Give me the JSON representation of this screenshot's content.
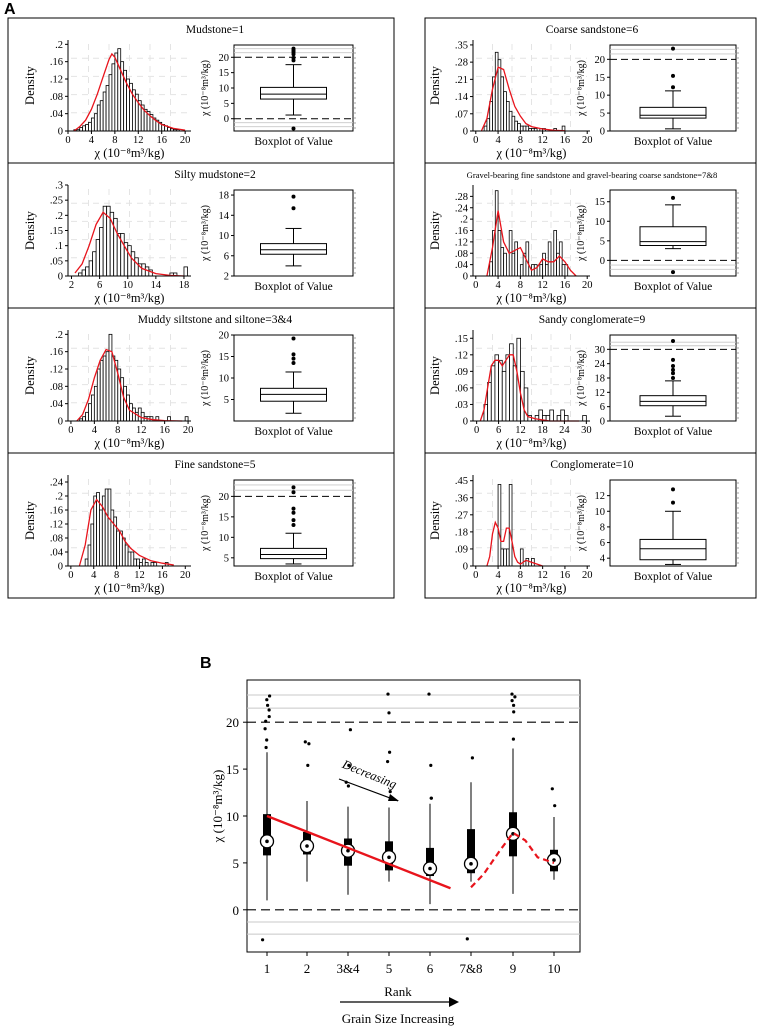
{
  "panel_a_label": "A",
  "panel_b_label": "B",
  "colors": {
    "fit": "#e8141c",
    "grid": "#c8c8c8",
    "axis": "#000000",
    "bar_fill": "#ffffff"
  },
  "common": {
    "density_label": "Density",
    "hist_xlabel": "χ (10⁻⁸m³/kg)",
    "box_ylabel": "χ (10⁻⁸m³/kg)",
    "box_xlabel": "Boxplot of Value"
  },
  "chart_data": [
    {
      "type": "bar",
      "title": "Mudstone=1",
      "xlim": [
        0,
        21
      ],
      "xticks": [
        0,
        4,
        8,
        12,
        16,
        20
      ],
      "ylim": [
        0,
        0.21
      ],
      "yticks": [
        0,
        0.04,
        0.08,
        0.12,
        0.16,
        0.2
      ],
      "bin_start": 1,
      "bin_width": 0.5,
      "values": [
        0.003,
        0.003,
        0.008,
        0.012,
        0.015,
        0.02,
        0.03,
        0.04,
        0.06,
        0.07,
        0.09,
        0.105,
        0.13,
        0.155,
        0.18,
        0.19,
        0.16,
        0.14,
        0.12,
        0.11,
        0.095,
        0.085,
        0.07,
        0.06,
        0.05,
        0.045,
        0.038,
        0.03,
        0.025,
        0.02,
        0.015,
        0.012,
        0.008,
        0.005,
        0.003,
        0.003
      ],
      "fit_x": [
        1,
        2,
        3,
        4,
        5,
        6,
        7,
        7.5,
        8,
        9,
        10,
        11,
        12,
        13,
        14,
        15,
        16,
        18,
        20
      ],
      "fit_y": [
        0,
        0.01,
        0.025,
        0.05,
        0.085,
        0.125,
        0.165,
        0.178,
        0.17,
        0.14,
        0.11,
        0.085,
        0.065,
        0.048,
        0.035,
        0.024,
        0.015,
        0.006,
        0.002
      ],
      "box": {
        "ylim": [
          -4,
          24
        ],
        "yticks": [
          0,
          5,
          10,
          15,
          20
        ],
        "min": 1.2,
        "q1": 6.4,
        "median": 8.0,
        "q3": 10.2,
        "max": 17.6,
        "outliers": [
          -3.2,
          19.0,
          19.8,
          21.0,
          21.6,
          22.0,
          22.4,
          22.8
        ],
        "hlines": [
          {
            "y": 20,
            "dashed": true
          },
          {
            "y": 0,
            "dashed": true
          },
          {
            "y": 21.5,
            "dashed": false
          },
          {
            "y": 22.8,
            "dashed": false
          },
          {
            "y": -1.3,
            "dashed": false
          },
          {
            "y": -2.6,
            "dashed": false
          }
        ]
      }
    },
    {
      "type": "bar",
      "title": "Silty mudstone=2",
      "xlim": [
        1.5,
        19
      ],
      "xticks": [
        2,
        6,
        10,
        14,
        18
      ],
      "ylim": [
        0,
        0.3
      ],
      "yticks": [
        0,
        0.05,
        0.1,
        0.15,
        0.2,
        0.25,
        0.3
      ],
      "bin_start": 3,
      "bin_width": 0.5,
      "values": [
        0.01,
        0.02,
        0.03,
        0.05,
        0.08,
        0.12,
        0.16,
        0.23,
        0.23,
        0.21,
        0.19,
        0.14,
        0.14,
        0.11,
        0.1,
        0.08,
        0.06,
        0.04,
        0.04,
        0.03,
        0.02,
        0.0,
        0.0,
        0.0,
        0.0,
        0.0,
        0.01,
        0.01,
        0.0,
        0.0,
        0.03
      ],
      "fit_x": [
        2.5,
        3.5,
        4.5,
        5.5,
        6.5,
        7.5,
        8.5,
        9.5,
        10.5,
        12,
        14,
        16,
        18
      ],
      "fit_y": [
        0.01,
        0.04,
        0.1,
        0.17,
        0.21,
        0.19,
        0.14,
        0.1,
        0.06,
        0.025,
        0.008,
        0.002,
        0.0
      ],
      "box": {
        "ylim": [
          2,
          19
        ],
        "yticks": [
          2,
          6,
          10,
          14,
          18
        ],
        "min": 4.0,
        "q1": 6.3,
        "median": 7.2,
        "q3": 8.4,
        "max": 11.4,
        "outliers": [
          15.4,
          17.7
        ],
        "hlines": []
      }
    },
    {
      "type": "bar",
      "title": "Muddy siltstone and siltone=3&4",
      "xlim": [
        -0.5,
        20.5
      ],
      "xticks": [
        0,
        4,
        8,
        12,
        16,
        20
      ],
      "ylim": [
        0,
        0.21
      ],
      "yticks": [
        0,
        0.04,
        0.08,
        0.12,
        0.16,
        0.2
      ],
      "bin_start": 1.5,
      "bin_width": 0.5,
      "values": [
        0.005,
        0.01,
        0.02,
        0.04,
        0.06,
        0.08,
        0.12,
        0.14,
        0.15,
        0.16,
        0.2,
        0.15,
        0.14,
        0.12,
        0.1,
        0.08,
        0.06,
        0.04,
        0.03,
        0.02,
        0.03,
        0.02,
        0.01,
        0.01,
        0.01,
        0.0,
        0.01,
        0.0,
        0.0,
        0.0,
        0.01,
        0.0,
        0.0,
        0.0,
        0.0,
        0.0,
        0.01
      ],
      "fit_x": [
        1,
        2,
        3,
        4,
        5,
        6,
        7,
        8,
        9,
        10,
        12,
        14,
        16,
        19
      ],
      "fit_y": [
        0.0,
        0.015,
        0.05,
        0.1,
        0.14,
        0.165,
        0.16,
        0.11,
        0.055,
        0.025,
        0.008,
        0.003,
        0.001,
        0.0
      ],
      "box": {
        "ylim": [
          0,
          20
        ],
        "yticks": [
          5,
          10,
          15,
          20
        ],
        "min": 1.8,
        "q1": 4.6,
        "median": 6.2,
        "q3": 7.6,
        "max": 11.4,
        "outliers": [
          13.5,
          14.5,
          15.5,
          19.2
        ],
        "hlines": []
      }
    },
    {
      "type": "bar",
      "title": "Fine sandstone=5",
      "xlim": [
        -0.5,
        21
      ],
      "xticks": [
        0,
        4,
        8,
        12,
        16,
        20
      ],
      "ylim": [
        0,
        0.26
      ],
      "yticks": [
        0,
        0.04,
        0.08,
        0.12,
        0.16,
        0.2,
        0.24
      ],
      "bin_start": 2.5,
      "bin_width": 0.5,
      "values": [
        0.02,
        0.06,
        0.12,
        0.2,
        0.21,
        0.16,
        0.2,
        0.22,
        0.22,
        0.16,
        0.14,
        0.1,
        0.1,
        0.08,
        0.06,
        0.04,
        0.04,
        0.02,
        0.02,
        0.01,
        0.02,
        0.01,
        0.0,
        0.01,
        0.01,
        0.0,
        0.0,
        0.0,
        0.01
      ],
      "fit_x": [
        1.5,
        2.5,
        3.5,
        4.5,
        5.5,
        6.5,
        7.5,
        8.5,
        9.5,
        10.5,
        12,
        14,
        16,
        18
      ],
      "fit_y": [
        0.0,
        0.06,
        0.16,
        0.19,
        0.17,
        0.14,
        0.12,
        0.1,
        0.07,
        0.05,
        0.03,
        0.015,
        0.008,
        0.003
      ],
      "box": {
        "ylim": [
          3,
          24
        ],
        "yticks": [
          5,
          10,
          15,
          20
        ],
        "min": 3.5,
        "q1": 4.8,
        "median": 5.8,
        "q3": 7.3,
        "max": 11.0,
        "outliers": [
          13.0,
          14.2,
          16.0,
          17.0,
          21.0,
          22.2
        ],
        "hlines": [
          {
            "y": 20,
            "dashed": true
          },
          {
            "y": 21.5,
            "dashed": false
          },
          {
            "y": 22.8,
            "dashed": false
          }
        ]
      }
    },
    {
      "type": "bar",
      "title": "Coarse sandstone=6",
      "xlim": [
        -0.5,
        20.5
      ],
      "xticks": [
        0,
        4,
        8,
        12,
        16,
        20
      ],
      "ylim": [
        0,
        0.37
      ],
      "yticks": [
        0,
        0.07,
        0.14,
        0.21,
        0.28,
        0.35
      ],
      "bin_start": 1.5,
      "bin_width": 0.5,
      "values": [
        0.02,
        0.05,
        0.12,
        0.22,
        0.32,
        0.29,
        0.22,
        0.16,
        0.12,
        0.08,
        0.06,
        0.04,
        0.03,
        0.02,
        0.02,
        0.02,
        0.01,
        0.01,
        0.01,
        0.0,
        0.01,
        0.01,
        0.0,
        0.0,
        0.0,
        0.01,
        0.0,
        0.0,
        0.02
      ],
      "fit_x": [
        1,
        2,
        3,
        4,
        5,
        6,
        7,
        8,
        9,
        10,
        12,
        14,
        16
      ],
      "fit_y": [
        0.0,
        0.05,
        0.17,
        0.26,
        0.25,
        0.17,
        0.1,
        0.06,
        0.03,
        0.018,
        0.008,
        0.003,
        0.001
      ],
      "box": {
        "ylim": [
          0,
          24
        ],
        "yticks": [
          0,
          5,
          10,
          15,
          20
        ],
        "min": 0.6,
        "q1": 3.6,
        "median": 4.4,
        "q3": 6.6,
        "max": 11.2,
        "outliers": [
          12.2,
          15.4,
          23.0
        ],
        "hlines": [
          {
            "y": 20,
            "dashed": true
          },
          {
            "y": 21.5,
            "dashed": false
          },
          {
            "y": 22.8,
            "dashed": false
          }
        ]
      }
    },
    {
      "type": "bar",
      "title": "Gravel-bearing fine sandstone and gravel-bearing coarse sandstone=7&8",
      "xlim": [
        -0.5,
        20.5
      ],
      "xticks": [
        0,
        4,
        8,
        12,
        16,
        20
      ],
      "ylim": [
        0,
        0.32
      ],
      "yticks": [
        0,
        0.04,
        0.08,
        0.12,
        0.16,
        0.2,
        0.24,
        0.28
      ],
      "bin_start": 2.5,
      "bin_width": 0.5,
      "values": [
        0.05,
        0.16,
        0.3,
        0.16,
        0.1,
        0.08,
        0.0,
        0.16,
        0.08,
        0.12,
        0.0,
        0.04,
        0.08,
        0.12,
        0.0,
        0.04,
        0.04,
        0.0,
        0.04,
        0.08,
        0.04,
        0.12,
        0.0,
        0.16,
        0.08,
        0.12,
        0.04,
        0.04
      ],
      "fit_x": [
        2,
        3,
        4,
        5,
        6,
        7,
        8,
        9,
        10,
        11,
        12,
        13,
        14,
        15,
        16,
        17,
        18
      ],
      "fit_y": [
        0.0,
        0.1,
        0.23,
        0.12,
        0.08,
        0.09,
        0.1,
        0.06,
        0.02,
        0.03,
        0.06,
        0.05,
        0.05,
        0.07,
        0.05,
        0.02,
        0.0
      ],
      "box": {
        "ylim": [
          -4,
          18
        ],
        "yticks": [
          0,
          5,
          10,
          15
        ],
        "min": 3.0,
        "q1": 3.8,
        "median": 4.8,
        "q3": 8.6,
        "max": 14.2,
        "outliers": [
          16.0,
          -3.0
        ],
        "hlines": [
          {
            "y": 0,
            "dashed": true
          },
          {
            "y": -1.2,
            "dashed": false
          },
          {
            "y": -2.3,
            "dashed": false
          }
        ]
      }
    },
    {
      "type": "bar",
      "title": "Sandy conglomerate=9",
      "xlim": [
        -1,
        31
      ],
      "xticks": [
        0,
        6,
        12,
        18,
        24,
        30
      ],
      "ylim": [
        0,
        0.165
      ],
      "yticks": [
        0,
        0.03,
        0.06,
        0.09,
        0.12,
        0.15
      ],
      "bin_start": 2,
      "bin_width": 1,
      "values": [
        0.03,
        0.07,
        0.1,
        0.12,
        0.11,
        0.09,
        0.12,
        0.14,
        0.1,
        0.15,
        0.09,
        0.06,
        0.01,
        0.0,
        0.01,
        0.02,
        0.01,
        0.01,
        0.02,
        0.0,
        0.01,
        0.02,
        0.01,
        0.0,
        0.0,
        0.0,
        0.0,
        0.01
      ],
      "fit_x": [
        1,
        2,
        3,
        4,
        5,
        6,
        7,
        8,
        9,
        10,
        11,
        12,
        13,
        14,
        16,
        18,
        20,
        24,
        28
      ],
      "fit_y": [
        0.0,
        0.02,
        0.06,
        0.1,
        0.11,
        0.11,
        0.1,
        0.11,
        0.12,
        0.12,
        0.09,
        0.05,
        0.02,
        0.008,
        0.004,
        0.002,
        0.0,
        0.0,
        0.0
      ],
      "box": {
        "ylim": [
          0,
          36
        ],
        "yticks": [
          0,
          6,
          12,
          18,
          24,
          30
        ],
        "min": 2.0,
        "q1": 6.4,
        "median": 8.2,
        "q3": 10.6,
        "max": 16.8,
        "outliers": [
          18.0,
          20.0,
          21.4,
          23.0,
          25.6,
          33.5
        ],
        "hlines": [
          {
            "y": 30,
            "dashed": true
          },
          {
            "y": 31.5,
            "dashed": false
          },
          {
            "y": 33.0,
            "dashed": false
          }
        ]
      }
    },
    {
      "type": "bar",
      "title": "Conglomerate=10",
      "xlim": [
        -0.5,
        20.5
      ],
      "xticks": [
        0,
        4,
        8,
        12,
        16,
        20
      ],
      "ylim": [
        0,
        0.48
      ],
      "yticks": [
        0,
        0.09,
        0.18,
        0.27,
        0.36,
        0.45
      ],
      "bin_start": 3,
      "bin_width": 0.5,
      "values": [
        0.0,
        0.0,
        0.43,
        0.09,
        0.09,
        0.09,
        0.43,
        0.0,
        0.0,
        0.0,
        0.09,
        0.0,
        0.04,
        0.0,
        0.04
      ],
      "fit_x": [
        2,
        2.5,
        3,
        3.5,
        4,
        4.5,
        5,
        5.5,
        6,
        6.5,
        7,
        7.5,
        8,
        9,
        10,
        11,
        12
      ],
      "fit_y": [
        0.0,
        0.05,
        0.17,
        0.23,
        0.2,
        0.13,
        0.13,
        0.2,
        0.2,
        0.13,
        0.05,
        0.02,
        0.01,
        0.03,
        0.02,
        0.01,
        0.0
      ],
      "box": {
        "ylim": [
          3,
          14
        ],
        "yticks": [
          4,
          6,
          8,
          10,
          12
        ],
        "min": 3.2,
        "q1": 3.8,
        "median": 5.2,
        "q3": 6.4,
        "max": 10.0,
        "outliers": [
          11.1,
          12.8
        ],
        "hlines": []
      }
    },
    {
      "type": "boxplot",
      "title": "",
      "xlabel": "Rank",
      "ylabel": "χ (10⁻⁸m³/kg)",
      "categories": [
        "1",
        "2",
        "3&4",
        "5",
        "6",
        "7&8",
        "9",
        "10"
      ],
      "ylim": [
        -4.5,
        24.5
      ],
      "yticks": [
        0,
        5,
        10,
        15,
        20
      ],
      "boxes": [
        {
          "min": 1.0,
          "q1": 5.8,
          "median": 7.3,
          "q3": 10.2,
          "max": 16.8,
          "outliers": [
            -3.2,
            17.3,
            18.1,
            19.3,
            20.1,
            20.6,
            21.3,
            21.8,
            22.4,
            22.8
          ]
        },
        {
          "min": 3.0,
          "q1": 5.9,
          "median": 6.8,
          "q3": 8.3,
          "max": 11.6,
          "outliers": [
            15.4,
            17.7,
            17.9
          ]
        },
        {
          "min": 1.6,
          "q1": 4.7,
          "median": 6.3,
          "q3": 7.6,
          "max": 11.0,
          "outliers": [
            13.2,
            13.6,
            15.4,
            19.2
          ]
        },
        {
          "min": 3.0,
          "q1": 4.2,
          "median": 5.6,
          "q3": 7.3,
          "max": 10.9,
          "outliers": [
            12.6,
            15.8,
            16.8,
            21.0,
            23.0
          ]
        },
        {
          "min": 0.6,
          "q1": 3.6,
          "median": 4.4,
          "q3": 6.6,
          "max": 11.3,
          "outliers": [
            11.9,
            11.9,
            15.4,
            23.0
          ]
        },
        {
          "min": 3.0,
          "q1": 3.9,
          "median": 4.9,
          "q3": 8.6,
          "max": 13.6,
          "outliers": [
            -3.1,
            16.2
          ]
        },
        {
          "min": 1.7,
          "q1": 5.7,
          "median": 8.1,
          "q3": 10.4,
          "max": 17.2,
          "outliers": [
            18.2,
            21.1,
            21.8,
            22.3,
            22.7,
            23.0
          ]
        },
        {
          "min": 3.2,
          "q1": 4.1,
          "median": 5.3,
          "q3": 6.4,
          "max": 9.9,
          "outliers": [
            11.1,
            12.9
          ]
        }
      ],
      "hlines": [
        {
          "y": 20,
          "dashed": true
        },
        {
          "y": 0,
          "dashed": true
        },
        {
          "y": 21.5,
          "dashed": false
        },
        {
          "y": 22.9,
          "dashed": false
        },
        {
          "y": -1.3,
          "dashed": false
        },
        {
          "y": -2.6,
          "dashed": false
        }
      ],
      "solid_trend": {
        "from_rank_index": 0,
        "to_rank_index": 4.5,
        "from_y": 10.0,
        "to_y": 2.3
      },
      "dashed_trend_x": [
        5,
        5.3,
        5.7,
        6,
        6.3,
        6.6,
        7
      ],
      "dashed_trend_y": [
        2.4,
        3.8,
        6.4,
        8.2,
        7.4,
        5.6,
        5.0
      ],
      "annotation": "Decreasing",
      "arrow_label": "Grain Size Increasing"
    }
  ]
}
